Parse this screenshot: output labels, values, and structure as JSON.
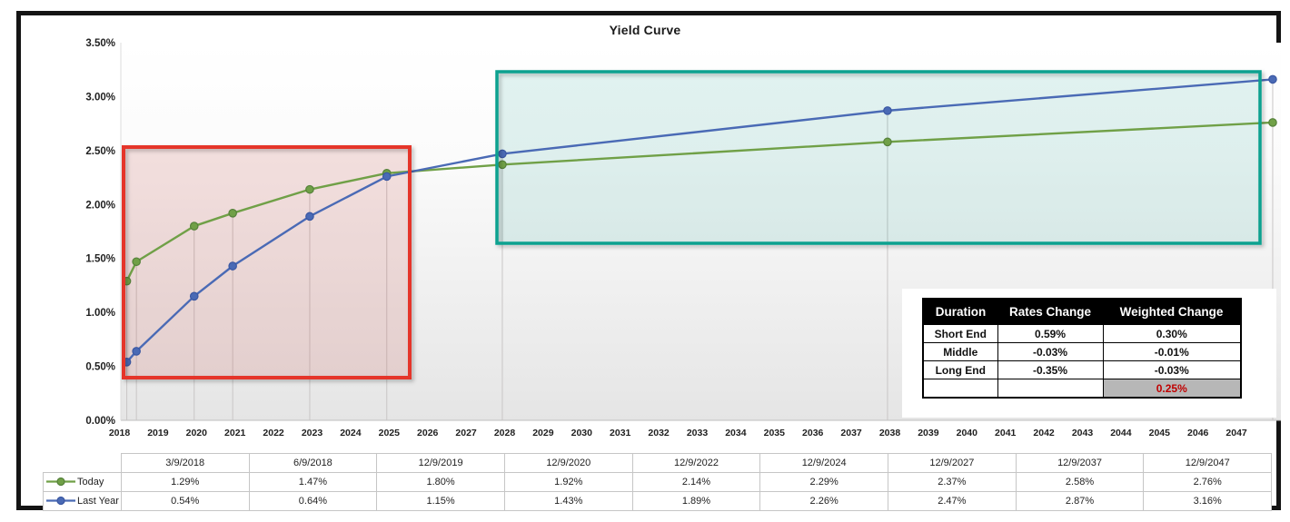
{
  "chart_data": {
    "type": "line",
    "title": "Yield Curve",
    "x_dates": [
      "3/9/2018",
      "6/9/2018",
      "12/9/2019",
      "12/9/2020",
      "12/9/2022",
      "12/9/2024",
      "12/9/2027",
      "12/9/2037",
      "12/9/2047"
    ],
    "x_years": [
      2018.19,
      2018.44,
      2019.94,
      2020.94,
      2022.94,
      2024.94,
      2027.94,
      2037.94,
      2047.94
    ],
    "series": [
      {
        "name": "Today",
        "color": "#70A047",
        "marker_stroke": "#55813A",
        "values": [
          1.29,
          1.47,
          1.8,
          1.92,
          2.14,
          2.29,
          2.37,
          2.58,
          2.76
        ]
      },
      {
        "name": "Last Year",
        "color": "#4A6AB5",
        "marker_stroke": "#3A57A2",
        "values": [
          0.54,
          0.64,
          1.15,
          1.43,
          1.89,
          2.26,
          2.47,
          2.87,
          3.16
        ]
      }
    ],
    "y_ticks": [
      "3.50%",
      "3.00%",
      "2.50%",
      "2.00%",
      "1.50%",
      "1.00%",
      "0.50%",
      "0.00%"
    ],
    "y_tick_values": [
      3.5,
      3.0,
      2.5,
      2.0,
      1.5,
      1.0,
      0.5,
      0.0
    ],
    "x_ticks": [
      "2018",
      "2019",
      "2020",
      "2021",
      "2022",
      "2023",
      "2024",
      "2025",
      "2026",
      "2027",
      "2028",
      "2029",
      "2030",
      "2031",
      "2032",
      "2033",
      "2034",
      "2035",
      "2036",
      "2037",
      "2038",
      "2039",
      "2040",
      "2041",
      "2042",
      "2043",
      "2044",
      "2045",
      "2046",
      "2047"
    ],
    "ylim": [
      0,
      3.5
    ],
    "grid": "drop-lines",
    "legend_position": "table-left",
    "highlights": [
      {
        "name": "short-end-highlight",
        "border": "#E5352B",
        "fill": "rgba(198,72,66,0.16)"
      },
      {
        "name": "long-end-highlight",
        "border": "#0DA18F",
        "fill": "rgba(17,160,143,0.12)"
      }
    ]
  },
  "summary_table": {
    "headers": [
      "Duration",
      "Rates Change",
      "Weighted Change"
    ],
    "rows": [
      [
        "Short End",
        "0.59%",
        "0.30%"
      ],
      [
        "Middle",
        "-0.03%",
        "-0.01%"
      ],
      [
        "Long End",
        "-0.35%",
        "-0.03%"
      ],
      [
        "",
        "",
        "0.25%"
      ]
    ],
    "total_value": "0.25%",
    "total_text_color": "#C00000",
    "total_bg_color": "#B7B7B7"
  }
}
